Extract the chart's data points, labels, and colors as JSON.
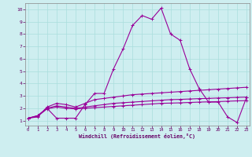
{
  "xlabel": "Windchill (Refroidissement éolien,°C)",
  "background_color": "#ceeef0",
  "grid_color": "#aadddd",
  "line_color": "#990099",
  "x_ticks": [
    0,
    1,
    2,
    3,
    4,
    5,
    6,
    7,
    8,
    9,
    10,
    11,
    12,
    13,
    14,
    15,
    16,
    17,
    18,
    19,
    20,
    21,
    22,
    23
  ],
  "y_ticks": [
    1,
    2,
    3,
    4,
    5,
    6,
    7,
    8,
    9,
    10
  ],
  "xlim": [
    -0.3,
    23.3
  ],
  "ylim": [
    0.6,
    10.5
  ],
  "series": [
    {
      "x": [
        0,
        1,
        2,
        3,
        4,
        5,
        6,
        7,
        8,
        9,
        10,
        11,
        12,
        13,
        14,
        15,
        16,
        17,
        18,
        19,
        20,
        21,
        22,
        23
      ],
      "y": [
        1.2,
        1.4,
        2.0,
        1.2,
        1.2,
        1.2,
        2.3,
        3.2,
        3.2,
        5.2,
        6.8,
        8.7,
        9.5,
        9.2,
        10.1,
        8.0,
        7.5,
        5.2,
        3.6,
        2.5,
        2.5,
        1.3,
        0.85,
        2.9
      ]
    },
    {
      "x": [
        0,
        1,
        2,
        3,
        4,
        5,
        6,
        7,
        8,
        9,
        10,
        11,
        12,
        13,
        14,
        15,
        16,
        17,
        18,
        19,
        20,
        21,
        22,
        23
      ],
      "y": [
        1.2,
        1.3,
        2.1,
        2.4,
        2.3,
        2.1,
        2.4,
        2.7,
        2.8,
        2.9,
        3.0,
        3.1,
        3.15,
        3.2,
        3.25,
        3.3,
        3.35,
        3.4,
        3.45,
        3.5,
        3.55,
        3.6,
        3.65,
        3.7
      ]
    },
    {
      "x": [
        0,
        1,
        2,
        3,
        4,
        5,
        6,
        7,
        8,
        9,
        10,
        11,
        12,
        13,
        14,
        15,
        16,
        17,
        18,
        19,
        20,
        21,
        22,
        23
      ],
      "y": [
        1.2,
        1.4,
        2.0,
        2.2,
        2.1,
        2.0,
        2.1,
        2.2,
        2.3,
        2.4,
        2.45,
        2.5,
        2.55,
        2.6,
        2.65,
        2.7,
        2.72,
        2.75,
        2.78,
        2.8,
        2.83,
        2.85,
        2.88,
        2.9
      ]
    },
    {
      "x": [
        0,
        1,
        2,
        3,
        4,
        5,
        6,
        7,
        8,
        9,
        10,
        11,
        12,
        13,
        14,
        15,
        16,
        17,
        18,
        19,
        20,
        21,
        22,
        23
      ],
      "y": [
        1.2,
        1.35,
        1.95,
        2.1,
        2.0,
        1.95,
        2.0,
        2.05,
        2.1,
        2.15,
        2.2,
        2.25,
        2.3,
        2.35,
        2.4,
        2.42,
        2.44,
        2.47,
        2.5,
        2.52,
        2.54,
        2.57,
        2.6,
        2.62
      ]
    }
  ]
}
